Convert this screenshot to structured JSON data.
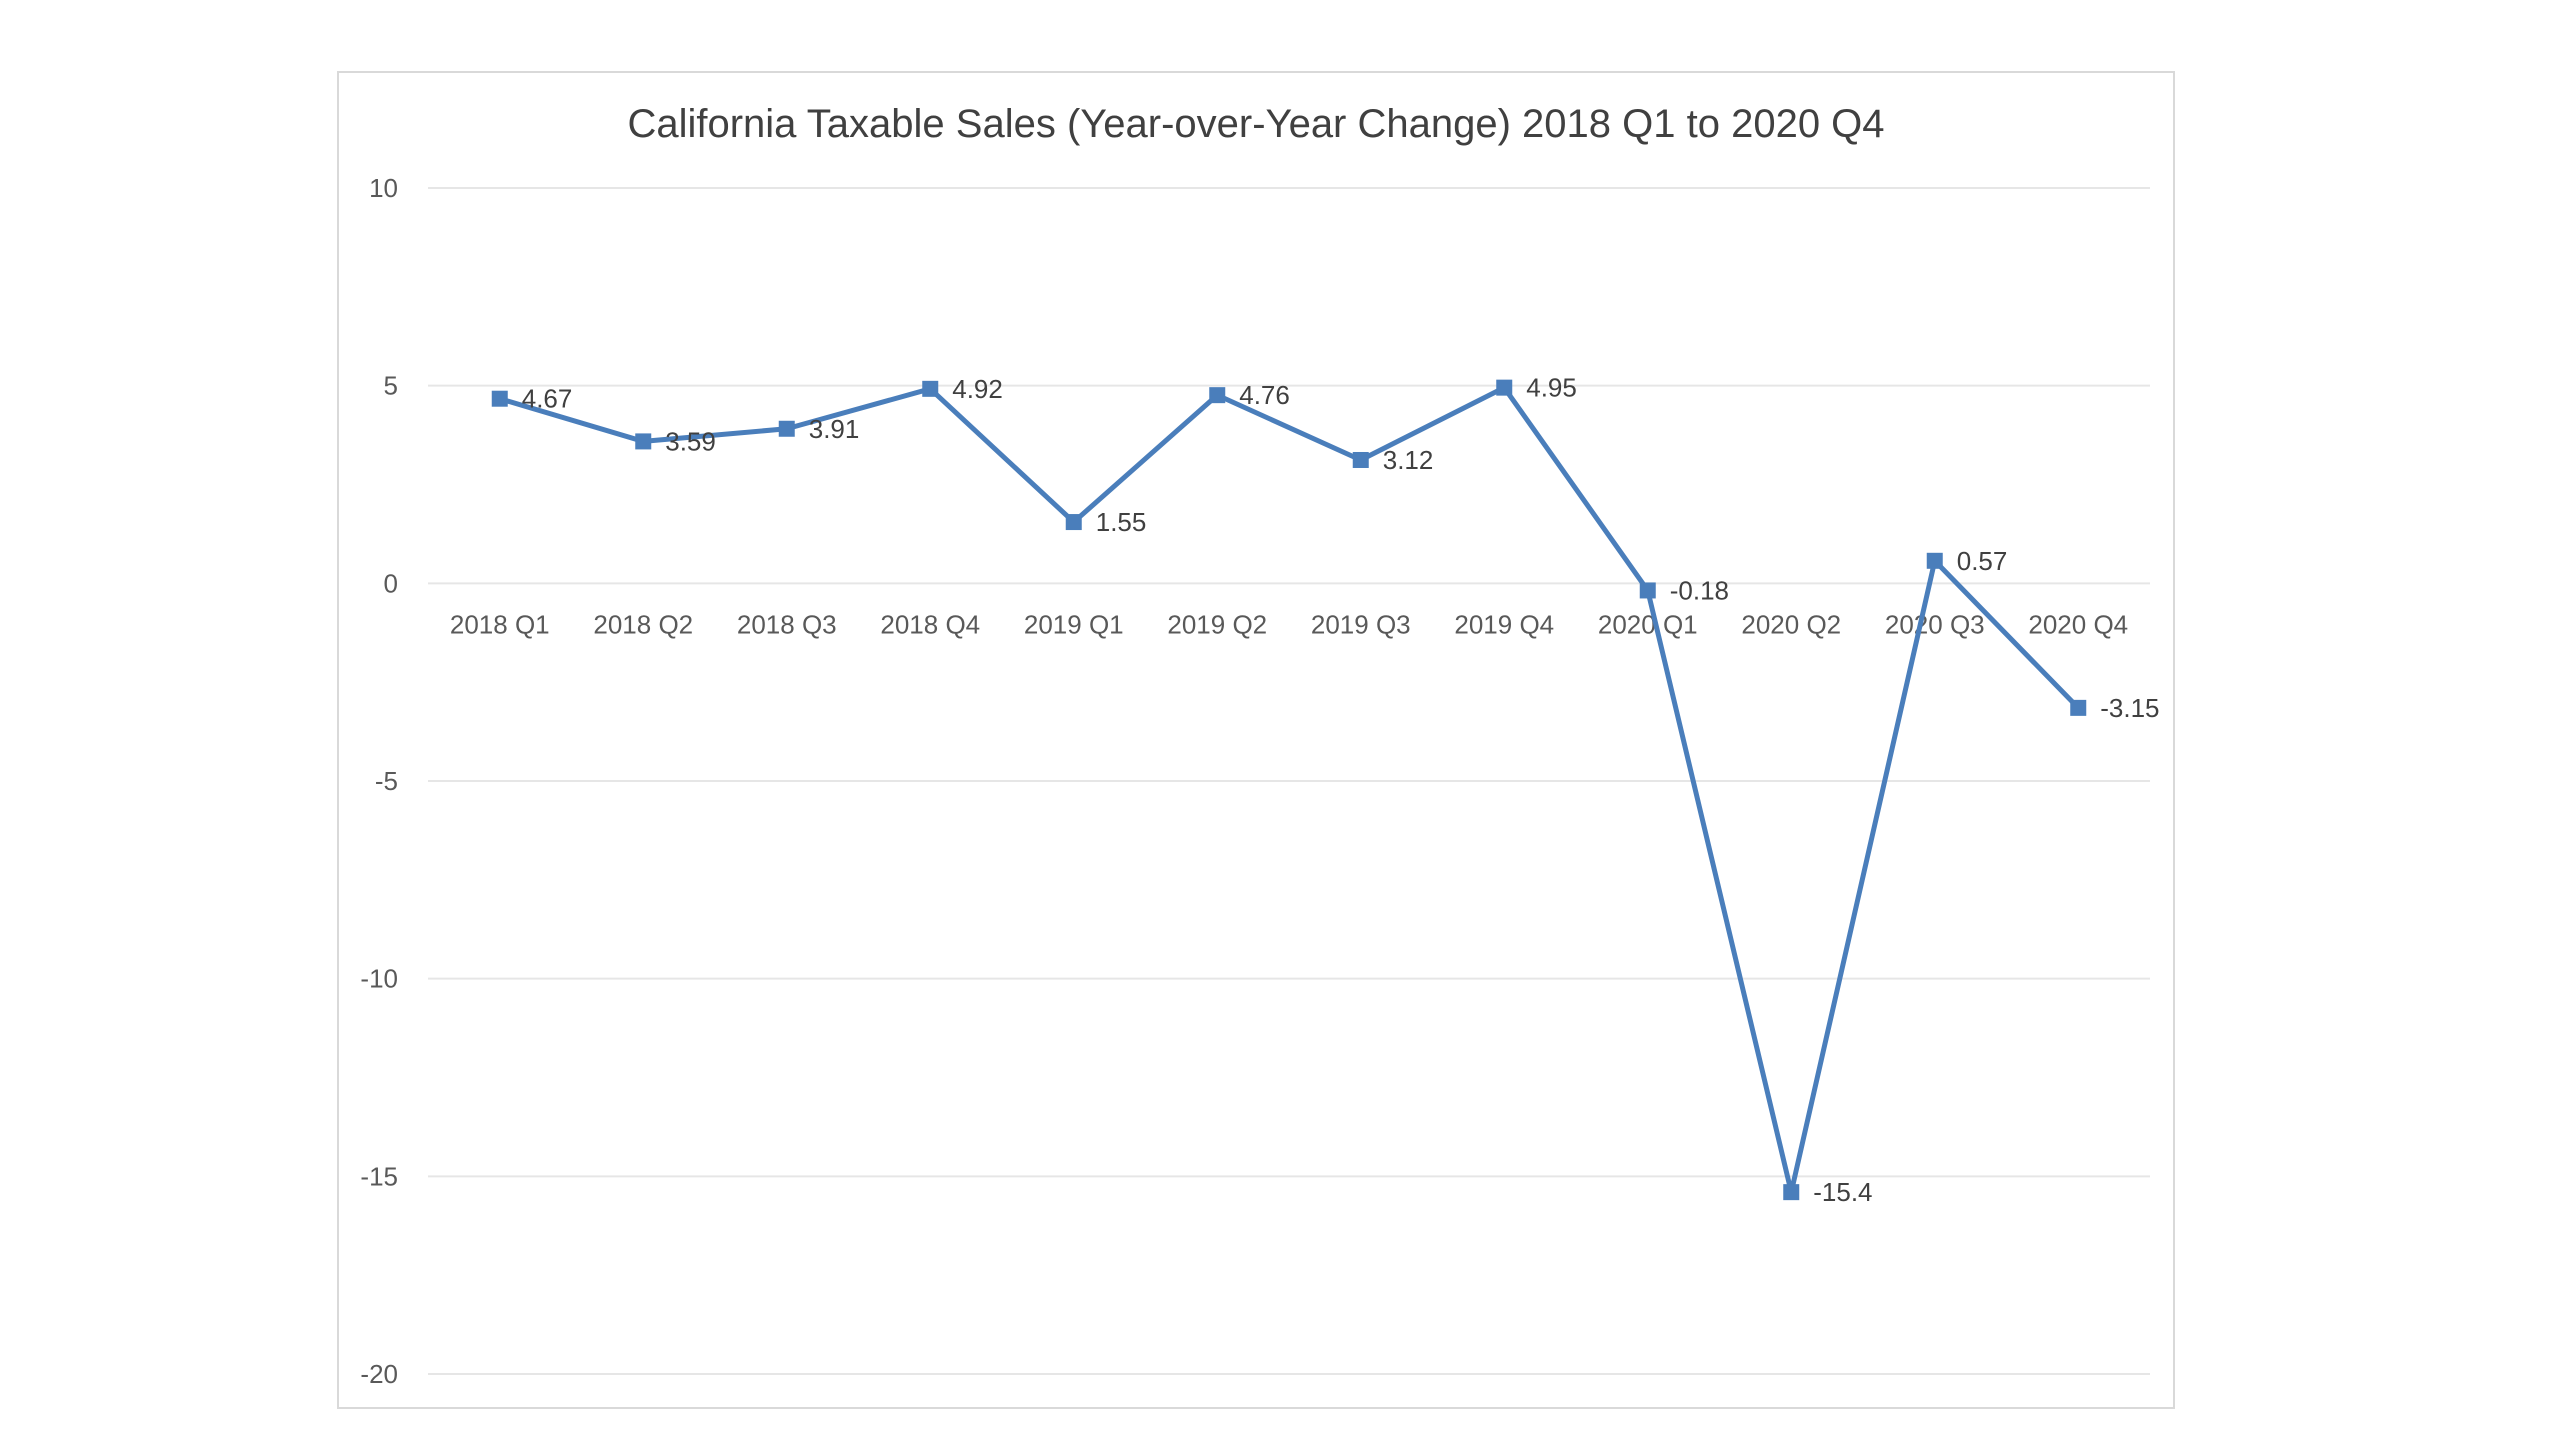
{
  "chart_data": {
    "type": "line",
    "title": "California Taxable Sales (Year-over-Year Change) 2018 Q1 to 2020 Q4",
    "xlabel": "",
    "ylabel": "",
    "categories": [
      "2018 Q1",
      "2018 Q2",
      "2018 Q3",
      "2018 Q4",
      "2019 Q1",
      "2019 Q2",
      "2019 Q3",
      "2019 Q4",
      "2020 Q1",
      "2020 Q2",
      "2020 Q3",
      "2020 Q4"
    ],
    "series": [
      {
        "values": [
          4.67,
          3.59,
          3.91,
          4.92,
          1.55,
          4.76,
          3.12,
          4.95,
          -0.18,
          -15.4,
          0.57,
          -3.15
        ],
        "labels": [
          "4.67",
          "3.59",
          "3.91",
          "4.92",
          "1.55",
          "4.76",
          "3.12",
          "4.95",
          "-0.18",
          "-15.4",
          "0.57",
          "-3.15"
        ],
        "color": "#4a7ebb",
        "marker": "square"
      }
    ],
    "ylim": [
      -20,
      10
    ],
    "yticks": [
      "10",
      "5",
      "0",
      "-5",
      "-10",
      "-15",
      "-20"
    ],
    "ytick_values": [
      10,
      5,
      0,
      -5,
      -10,
      -15,
      -20
    ],
    "grid": true,
    "legend": "none"
  }
}
